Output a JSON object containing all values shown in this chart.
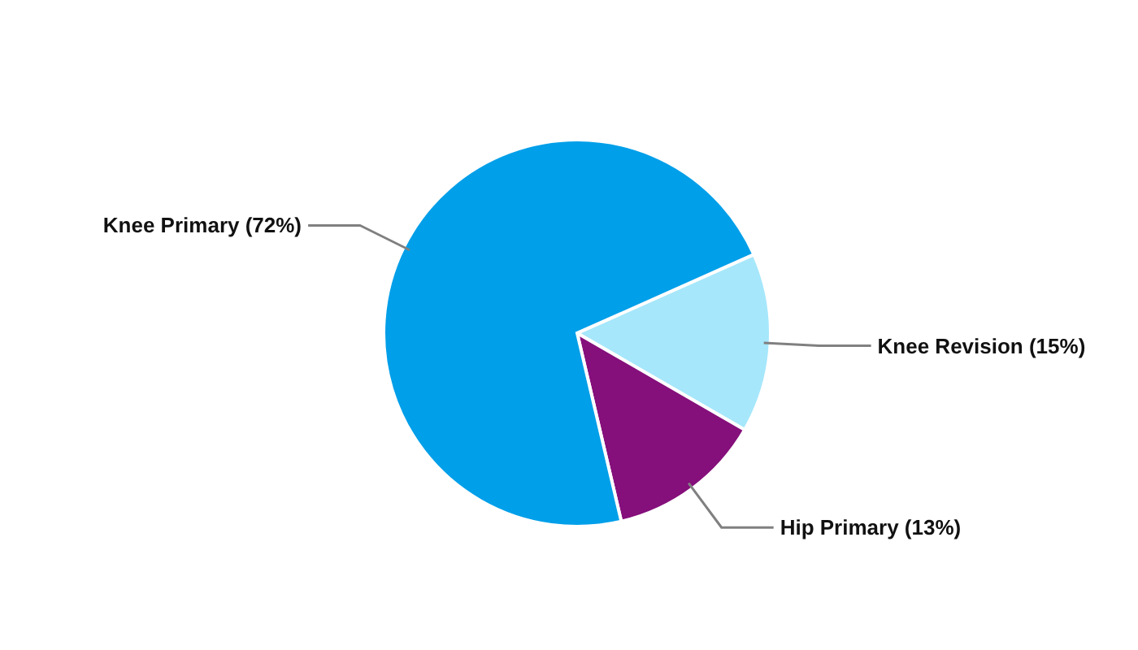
{
  "chart_data": {
    "type": "pie",
    "categories": [
      "Knee Revision (15%)",
      "Hip Primary (13%)",
      "Knee Primary (72%)"
    ],
    "values": [
      15,
      13,
      72
    ],
    "colors": [
      "#a6e7fb",
      "#850f7b",
      "#009fe9"
    ],
    "legend": false
  }
}
